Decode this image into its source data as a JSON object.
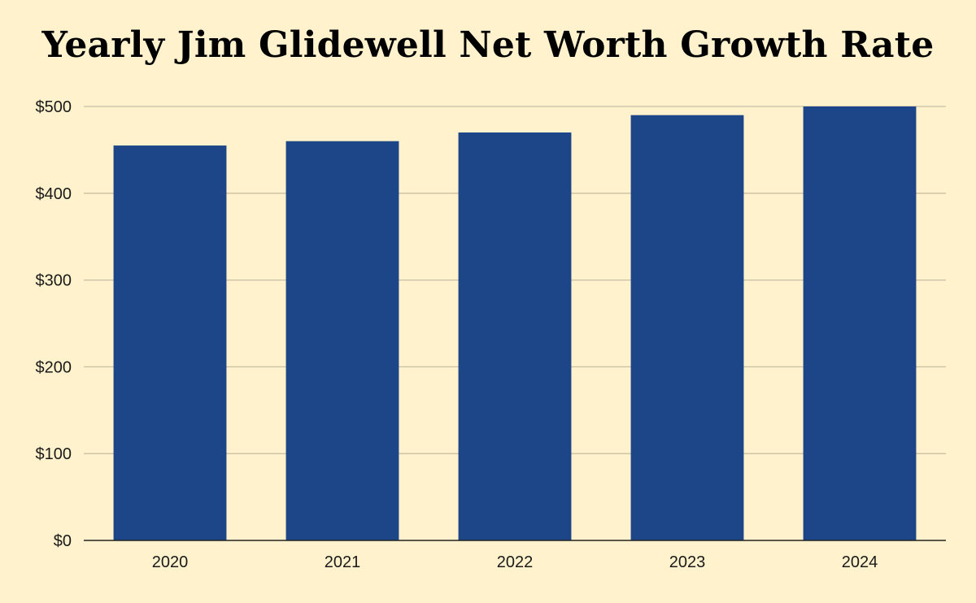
{
  "chart_data": {
    "type": "bar",
    "title": "Yearly Jim Glidewell Net Worth Growth Rate",
    "xlabel": "",
    "ylabel": "",
    "categories": [
      "2020",
      "2021",
      "2022",
      "2023",
      "2024"
    ],
    "values": [
      455,
      460,
      470,
      490,
      500
    ],
    "ylim": [
      0,
      500
    ],
    "yticks": [
      0,
      100,
      200,
      300,
      400,
      500
    ],
    "ytick_labels": [
      "$0",
      "$100",
      "$200",
      "$300",
      "$400",
      "$500"
    ],
    "grid": true,
    "legend": "none",
    "colors": {
      "bar": "#1d4688",
      "background": "#fff2cc",
      "grid": "#c8bfa6",
      "axis": "#222222"
    }
  }
}
